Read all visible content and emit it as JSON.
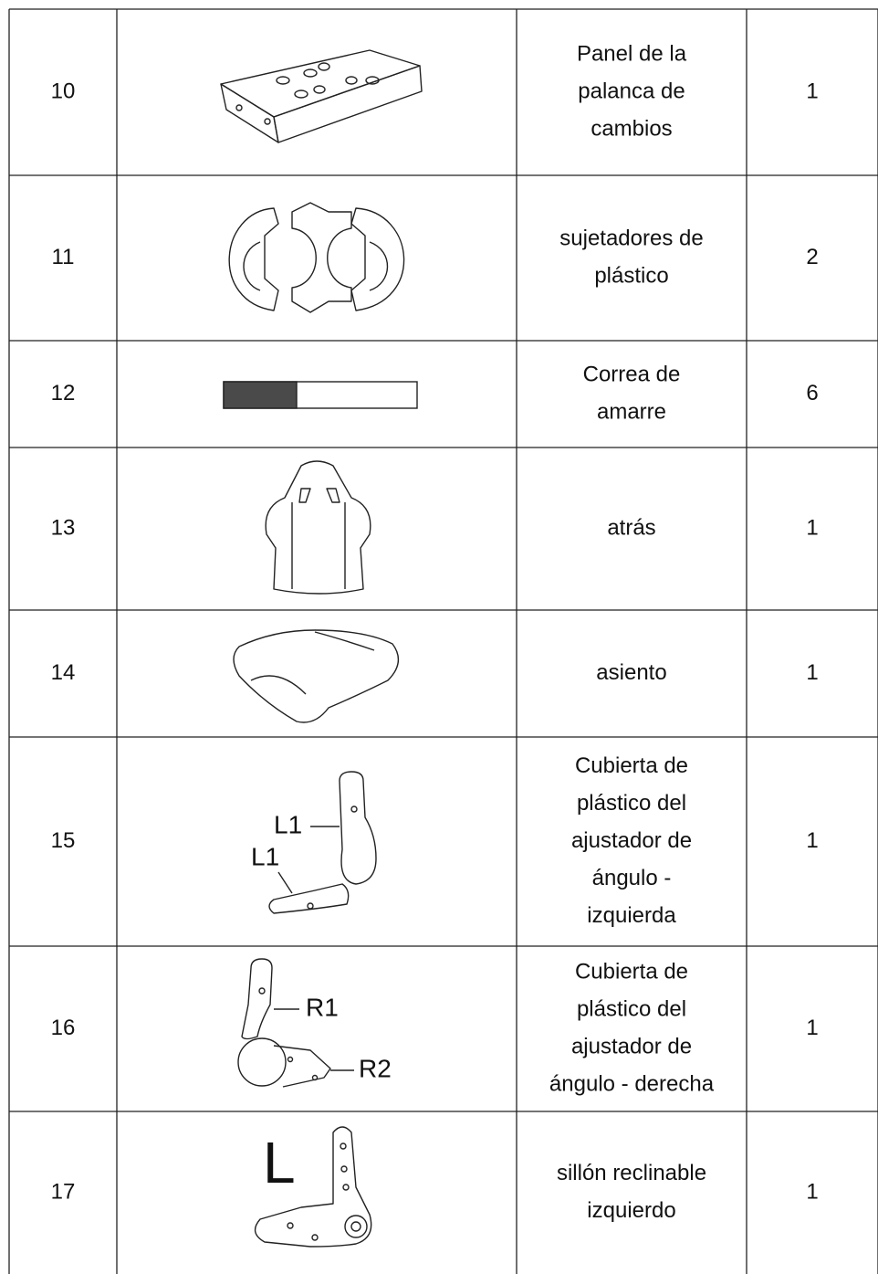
{
  "table": {
    "rows": [
      {
        "number": "10",
        "description": [
          "Panel de la",
          "palanca de",
          "cambios"
        ],
        "quantity": "1"
      },
      {
        "number": "11",
        "description": [
          "sujetadores de",
          "plástico"
        ],
        "quantity": "2"
      },
      {
        "number": "12",
        "description": [
          "Correa de",
          "amarre"
        ],
        "quantity": "6"
      },
      {
        "number": "13",
        "description": [
          "atrás"
        ],
        "quantity": "1"
      },
      {
        "number": "14",
        "description": [
          "asiento"
        ],
        "quantity": "1"
      },
      {
        "number": "15",
        "description": [
          "Cubierta de",
          "plástico del",
          "ajustador de",
          "ángulo -",
          "izquierda"
        ],
        "quantity": "1",
        "callouts": [
          "L1",
          "L1"
        ]
      },
      {
        "number": "16",
        "description": [
          "Cubierta de",
          "plástico del",
          "ajustador de",
          "ángulo - derecha"
        ],
        "quantity": "1",
        "callouts": [
          "R1",
          "R2"
        ]
      },
      {
        "number": "17",
        "description": [
          "sillón reclinable",
          "izquierdo"
        ],
        "quantity": "1",
        "callouts": [
          "L"
        ]
      }
    ]
  }
}
